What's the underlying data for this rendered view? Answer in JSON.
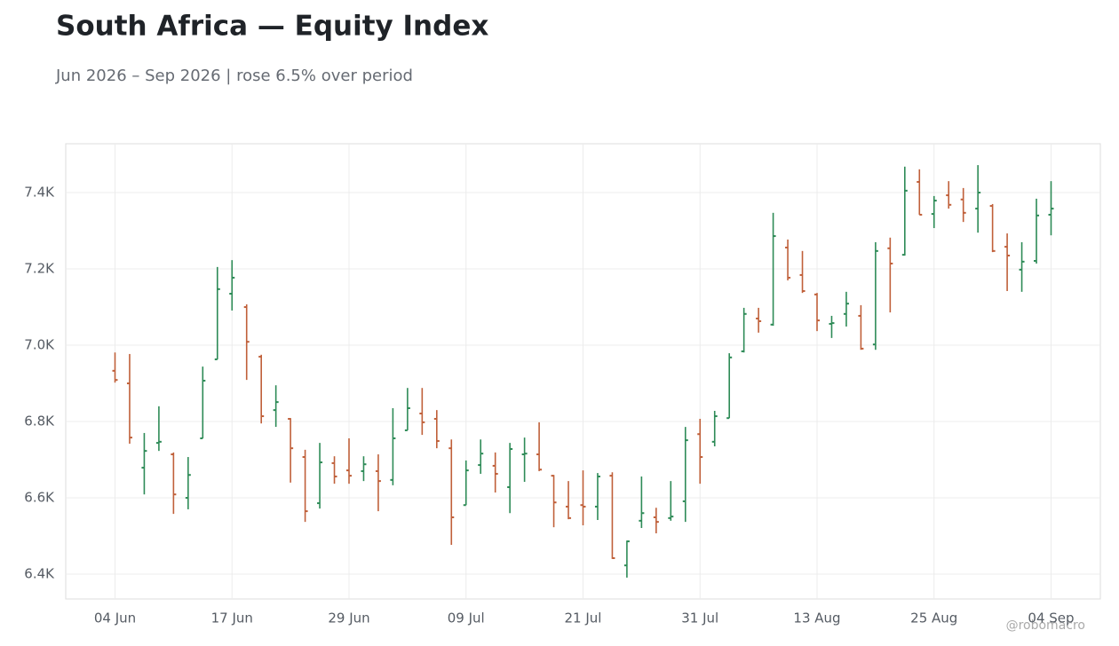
{
  "chart_data": {
    "type": "ohlc",
    "title": "South Africa — Equity Index",
    "subtitle": "Jun 2026 – Sep 2026 | rose 6.5% over period",
    "watermark": "@robomacro",
    "categories": [
      "04 Jun",
      null,
      null,
      null,
      null,
      null,
      null,
      null,
      "17 Jun",
      null,
      null,
      null,
      null,
      null,
      null,
      null,
      "29 Jun",
      null,
      null,
      null,
      null,
      null,
      null,
      null,
      "09 Jul",
      null,
      null,
      null,
      null,
      null,
      null,
      null,
      "21 Jul",
      null,
      null,
      null,
      null,
      null,
      null,
      null,
      "31 Jul",
      null,
      null,
      null,
      null,
      null,
      null,
      null,
      "13 Aug",
      null,
      null,
      null,
      null,
      null,
      null,
      null,
      "25 Aug",
      null,
      null,
      null,
      null,
      null,
      null,
      null,
      "04 Sep"
    ],
    "open": [
      6933,
      6900,
      6679,
      6744,
      6714,
      6600,
      6756,
      6963,
      7135,
      7100,
      6970,
      6830,
      6807,
      6707,
      6586,
      6691,
      6672,
      6670,
      6670,
      6647,
      6777,
      6821,
      6807,
      6730,
      6581,
      6686,
      6684,
      6628,
      6714,
      6714,
      6658,
      6577,
      6581,
      6577,
      6658,
      6423,
      6540,
      6549,
      6547,
      6591,
      6767,
      6747,
      6809,
      6984,
      7070,
      7054,
      7256,
      7184,
      7133,
      7056,
      7082,
      7077,
      7002,
      7254,
      7237,
      7428,
      7344,
      7393,
      7382,
      7358,
      7365,
      7258,
      7198,
      7221,
      7342
    ],
    "high": [
      6981,
      6977,
      6770,
      6840,
      6719,
      6707,
      6944,
      7205,
      7223,
      7107,
      6975,
      6895,
      6809,
      6726,
      6744,
      6709,
      6756,
      6709,
      6714,
      6835,
      6888,
      6888,
      6830,
      6753,
      6698,
      6753,
      6719,
      6744,
      6758,
      6798,
      6660,
      6644,
      6672,
      6665,
      6667,
      6488,
      6656,
      6574,
      6644,
      6786,
      6807,
      6828,
      6979,
      7098,
      7098,
      7347,
      7277,
      7247,
      7137,
      7077,
      7140,
      7105,
      7270,
      7282,
      7468,
      7461,
      7391,
      7430,
      7412,
      7472,
      7370,
      7293,
      7270,
      7384,
      7430
    ],
    "low": [
      6902,
      6742,
      6609,
      6723,
      6558,
      6570,
      6756,
      6963,
      7091,
      6909,
      6795,
      6786,
      6640,
      6537,
      6572,
      6637,
      6637,
      6644,
      6565,
      6633,
      6777,
      6765,
      6730,
      6477,
      6581,
      6663,
      6614,
      6560,
      6642,
      6670,
      6523,
      6544,
      6528,
      6542,
      6440,
      6391,
      6521,
      6507,
      6540,
      6537,
      6637,
      6735,
      6809,
      6981,
      7033,
      7051,
      7170,
      7137,
      7037,
      7019,
      7049,
      6988,
      6988,
      7086,
      7235,
      7342,
      7307,
      7358,
      7323,
      7295,
      7244,
      7142,
      7140,
      7214,
      7288
    ],
    "close": [
      6909,
      6758,
      6723,
      6747,
      6609,
      6660,
      6907,
      7147,
      7177,
      7009,
      6814,
      6851,
      6730,
      6565,
      6693,
      6656,
      6658,
      6688,
      6644,
      6756,
      6835,
      6798,
      6749,
      6549,
      6672,
      6716,
      6663,
      6728,
      6716,
      6674,
      6588,
      6547,
      6577,
      6656,
      6442,
      6486,
      6560,
      6537,
      6551,
      6751,
      6707,
      6814,
      6968,
      7082,
      7063,
      7286,
      7177,
      7142,
      7065,
      7058,
      7109,
      6991,
      7247,
      7214,
      7405,
      7342,
      7379,
      7368,
      7347,
      7400,
      7247,
      7235,
      7219,
      7340,
      7358
    ],
    "up_color": "#2e8b57",
    "down_color": "#c0603a",
    "ylim": [
      6335,
      7528
    ],
    "yticks": [
      {
        "value": 6400,
        "label": "6.4K"
      },
      {
        "value": 6600,
        "label": "6.6K"
      },
      {
        "value": 6800,
        "label": "6.8K"
      },
      {
        "value": 7000,
        "label": "7.0K"
      },
      {
        "value": 7200,
        "label": "7.2K"
      },
      {
        "value": 7400,
        "label": "7.4K"
      }
    ],
    "grid": true
  }
}
